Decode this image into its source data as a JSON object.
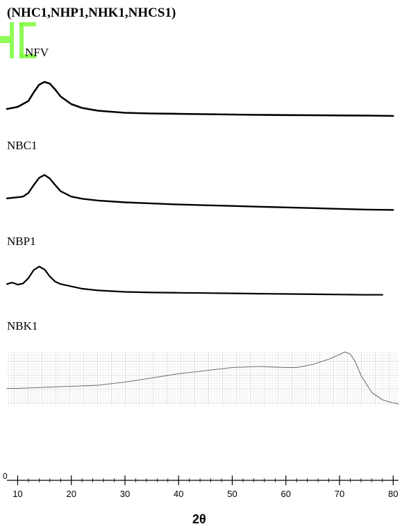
{
  "figure": {
    "header_text": "(NHC1,NHP1,NHK1,NHCS1)",
    "logo_color": "#7CFC3A",
    "axis_tick_zero": "0"
  },
  "chart_data": {
    "type": "line",
    "title": "",
    "xlabel": "2θ",
    "ylabel": "",
    "xlim": [
      8,
      81
    ],
    "x_ticks": [
      10,
      20,
      30,
      40,
      50,
      60,
      70,
      80
    ],
    "grid": false,
    "series": [
      {
        "name": "NFV",
        "color": "#000000",
        "grid_background": false,
        "x": [
          8,
          10,
          12,
          13,
          14,
          15,
          16,
          17,
          18,
          20,
          22,
          25,
          30,
          35,
          40,
          45,
          50,
          55,
          60,
          65,
          70,
          75,
          80
        ],
        "y": [
          0.22,
          0.28,
          0.45,
          0.7,
          0.92,
          1.0,
          0.95,
          0.78,
          0.58,
          0.36,
          0.25,
          0.17,
          0.11,
          0.09,
          0.08,
          0.07,
          0.06,
          0.05,
          0.045,
          0.04,
          0.035,
          0.03,
          0.02
        ]
      },
      {
        "name": "NBC1",
        "color": "#000000",
        "grid_background": false,
        "x": [
          8,
          10,
          11,
          12,
          13,
          14,
          15,
          16,
          17,
          18,
          20,
          22,
          25,
          30,
          35,
          40,
          45,
          50,
          55,
          60,
          65,
          70,
          75,
          80
        ],
        "y": [
          0.35,
          0.38,
          0.4,
          0.5,
          0.72,
          0.92,
          1.0,
          0.9,
          0.72,
          0.55,
          0.4,
          0.34,
          0.29,
          0.24,
          0.21,
          0.18,
          0.16,
          0.14,
          0.12,
          0.1,
          0.08,
          0.06,
          0.04,
          0.03
        ]
      },
      {
        "name": "NBP1",
        "color": "#000000",
        "grid_background": false,
        "x": [
          8,
          9,
          10,
          11,
          12,
          13,
          14,
          15,
          16,
          17,
          18,
          20,
          22,
          25,
          30,
          35,
          40,
          45,
          50,
          55,
          60,
          65,
          70,
          75,
          78
        ],
        "y": [
          0.4,
          0.45,
          0.38,
          0.42,
          0.6,
          0.88,
          1.0,
          0.9,
          0.66,
          0.48,
          0.4,
          0.32,
          0.24,
          0.18,
          0.13,
          0.11,
          0.1,
          0.09,
          0.08,
          0.07,
          0.06,
          0.05,
          0.04,
          0.03,
          0.03
        ]
      },
      {
        "name": "NBK1",
        "color": "#707070",
        "grid_background": true,
        "x": [
          8,
          10,
          15,
          20,
          25,
          30,
          35,
          40,
          45,
          50,
          55,
          60,
          62,
          65,
          68,
          70,
          71,
          72,
          73,
          74,
          76,
          78,
          80,
          81
        ],
        "y": [
          0.3,
          0.3,
          0.32,
          0.34,
          0.36,
          0.42,
          0.5,
          0.58,
          0.64,
          0.7,
          0.72,
          0.7,
          0.7,
          0.76,
          0.86,
          0.95,
          1.0,
          0.96,
          0.8,
          0.55,
          0.22,
          0.08,
          0.02,
          0.0
        ]
      }
    ]
  }
}
